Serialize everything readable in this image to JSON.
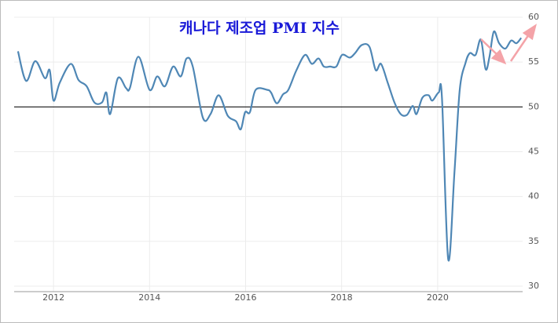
{
  "chart_data": {
    "type": "line",
    "title": "캐나다 제조업 PMI 지수",
    "x": [
      2011.26,
      2011.43,
      2011.62,
      2011.82,
      2011.92,
      2012.0,
      2012.13,
      2012.36,
      2012.52,
      2012.69,
      2012.85,
      2013.01,
      2013.1,
      2013.18,
      2013.34,
      2013.51,
      2013.59,
      2013.77,
      2014.0,
      2014.16,
      2014.32,
      2014.49,
      2014.65,
      2014.77,
      2014.9,
      2015.11,
      2015.27,
      2015.44,
      2015.63,
      2015.8,
      2015.9,
      2015.99,
      2016.09,
      2016.21,
      2016.45,
      2016.53,
      2016.65,
      2016.78,
      2016.89,
      2017.06,
      2017.24,
      2017.38,
      2017.52,
      2017.63,
      2017.76,
      2017.89,
      2018.01,
      2018.17,
      2018.28,
      2018.42,
      2018.58,
      2018.71,
      2018.82,
      2018.96,
      2019.1,
      2019.23,
      2019.36,
      2019.48,
      2019.56,
      2019.68,
      2019.81,
      2019.89,
      2020.02,
      2020.09,
      2020.22,
      2020.35,
      2020.46,
      2020.58,
      2020.67,
      2020.79,
      2020.9,
      2021.0,
      2021.08,
      2021.17,
      2021.28,
      2021.41,
      2021.53,
      2021.64,
      2021.74
    ],
    "series": [
      {
        "name": "PMI",
        "color": "#4f87b5",
        "values": [
          56.2,
          52.9,
          55.1,
          53.2,
          54.1,
          50.7,
          52.7,
          54.8,
          53.0,
          52.3,
          50.5,
          50.5,
          51.6,
          49.2,
          53.2,
          52.1,
          52.1,
          55.6,
          51.9,
          53.4,
          52.3,
          54.5,
          53.4,
          55.4,
          54.5,
          48.8,
          49.2,
          51.3,
          49.0,
          48.4,
          47.5,
          49.4,
          49.4,
          51.9,
          51.9,
          51.6,
          50.4,
          51.4,
          51.9,
          54.1,
          55.8,
          54.8,
          55.4,
          54.5,
          54.5,
          54.5,
          55.8,
          55.5,
          56.0,
          56.9,
          56.7,
          54.1,
          54.8,
          52.7,
          50.5,
          49.2,
          49.1,
          50.1,
          49.2,
          51.0,
          51.3,
          50.7,
          51.6,
          51.0,
          33.0,
          42.7,
          51.9,
          54.9,
          56.0,
          55.8,
          57.5,
          54.2,
          55.6,
          58.4,
          57.1,
          56.5,
          57.4,
          57.1,
          57.7
        ]
      }
    ],
    "xlim": [
      2011.18,
      2021.77
    ],
    "xticks": [
      2012,
      2014,
      2016,
      2018,
      2020
    ],
    "ylim": [
      30,
      60
    ],
    "yticks": [
      30,
      35,
      40,
      45,
      50,
      55,
      60
    ],
    "reference_line": 50,
    "grid": true
  }
}
